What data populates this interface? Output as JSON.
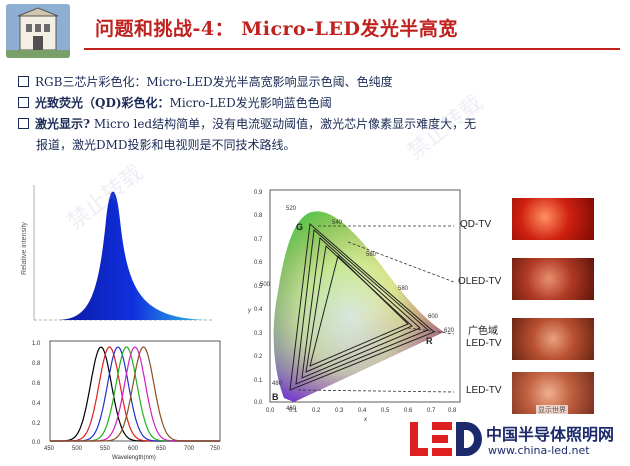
{
  "title": "问题和挑战-4：  Micro-LED发光半高宽",
  "bullets": [
    {
      "lead": "",
      "text": "RGB三芯片彩色化：Micro-LED发光半高宽影响显示色阈、色纯度"
    },
    {
      "lead": "光致荧光（QD)彩色化：",
      "text": "Micro-LED发光影响蓝色色阈"
    },
    {
      "lead": "激光显示?",
      "text": " Micro led结构简单，没有电流驱动阈值，激光芯片像素显示难度大，无"
    },
    {
      "lead": "",
      "text": "报道，激光DMD投影和电视则是不同技术路线。"
    }
  ],
  "spectrum_top": {
    "ylabel": "Relative intensity"
  },
  "spectrum_bottom": {
    "yticks": [
      "1.0",
      "0.8",
      "0.6",
      "0.4",
      "0.2",
      "0.0"
    ],
    "xticks": [
      "450",
      "500",
      "550",
      "600",
      "650",
      "700",
      "750"
    ],
    "xlabel": "Wavelength(nm)",
    "colors": [
      "#000000",
      "#e02020",
      "#2030d0",
      "#20b020",
      "#d020c0",
      "#8a5020"
    ]
  },
  "cie": {
    "yticks": [
      "0.9",
      "0.8",
      "0.7",
      "0.6",
      "0.5",
      "0.4",
      "0.3",
      "0.2",
      "0.1",
      "0.0"
    ],
    "xticks": [
      "0.0",
      "0.1",
      "0.2",
      "0.3",
      "0.4",
      "0.5",
      "0.6",
      "0.7",
      "0.8"
    ],
    "xlabel": "x",
    "ylabel": "y",
    "wavelengths": [
      "520",
      "540",
      "560",
      "580",
      "600",
      "620",
      "500",
      "480",
      "460"
    ],
    "corners": {
      "g": "G",
      "r": "R",
      "b": "B"
    },
    "labels": {
      "qd": "QD-TV",
      "oled": "OLED-TV",
      "gamut": "广色域",
      "led1": "LED-TV",
      "led2": "LED-TV"
    }
  },
  "brand": {
    "cn": "中国半导体照明网",
    "url": "www.china-led.net",
    "wechat": "显示世界"
  },
  "watermark": "禁止转载"
}
